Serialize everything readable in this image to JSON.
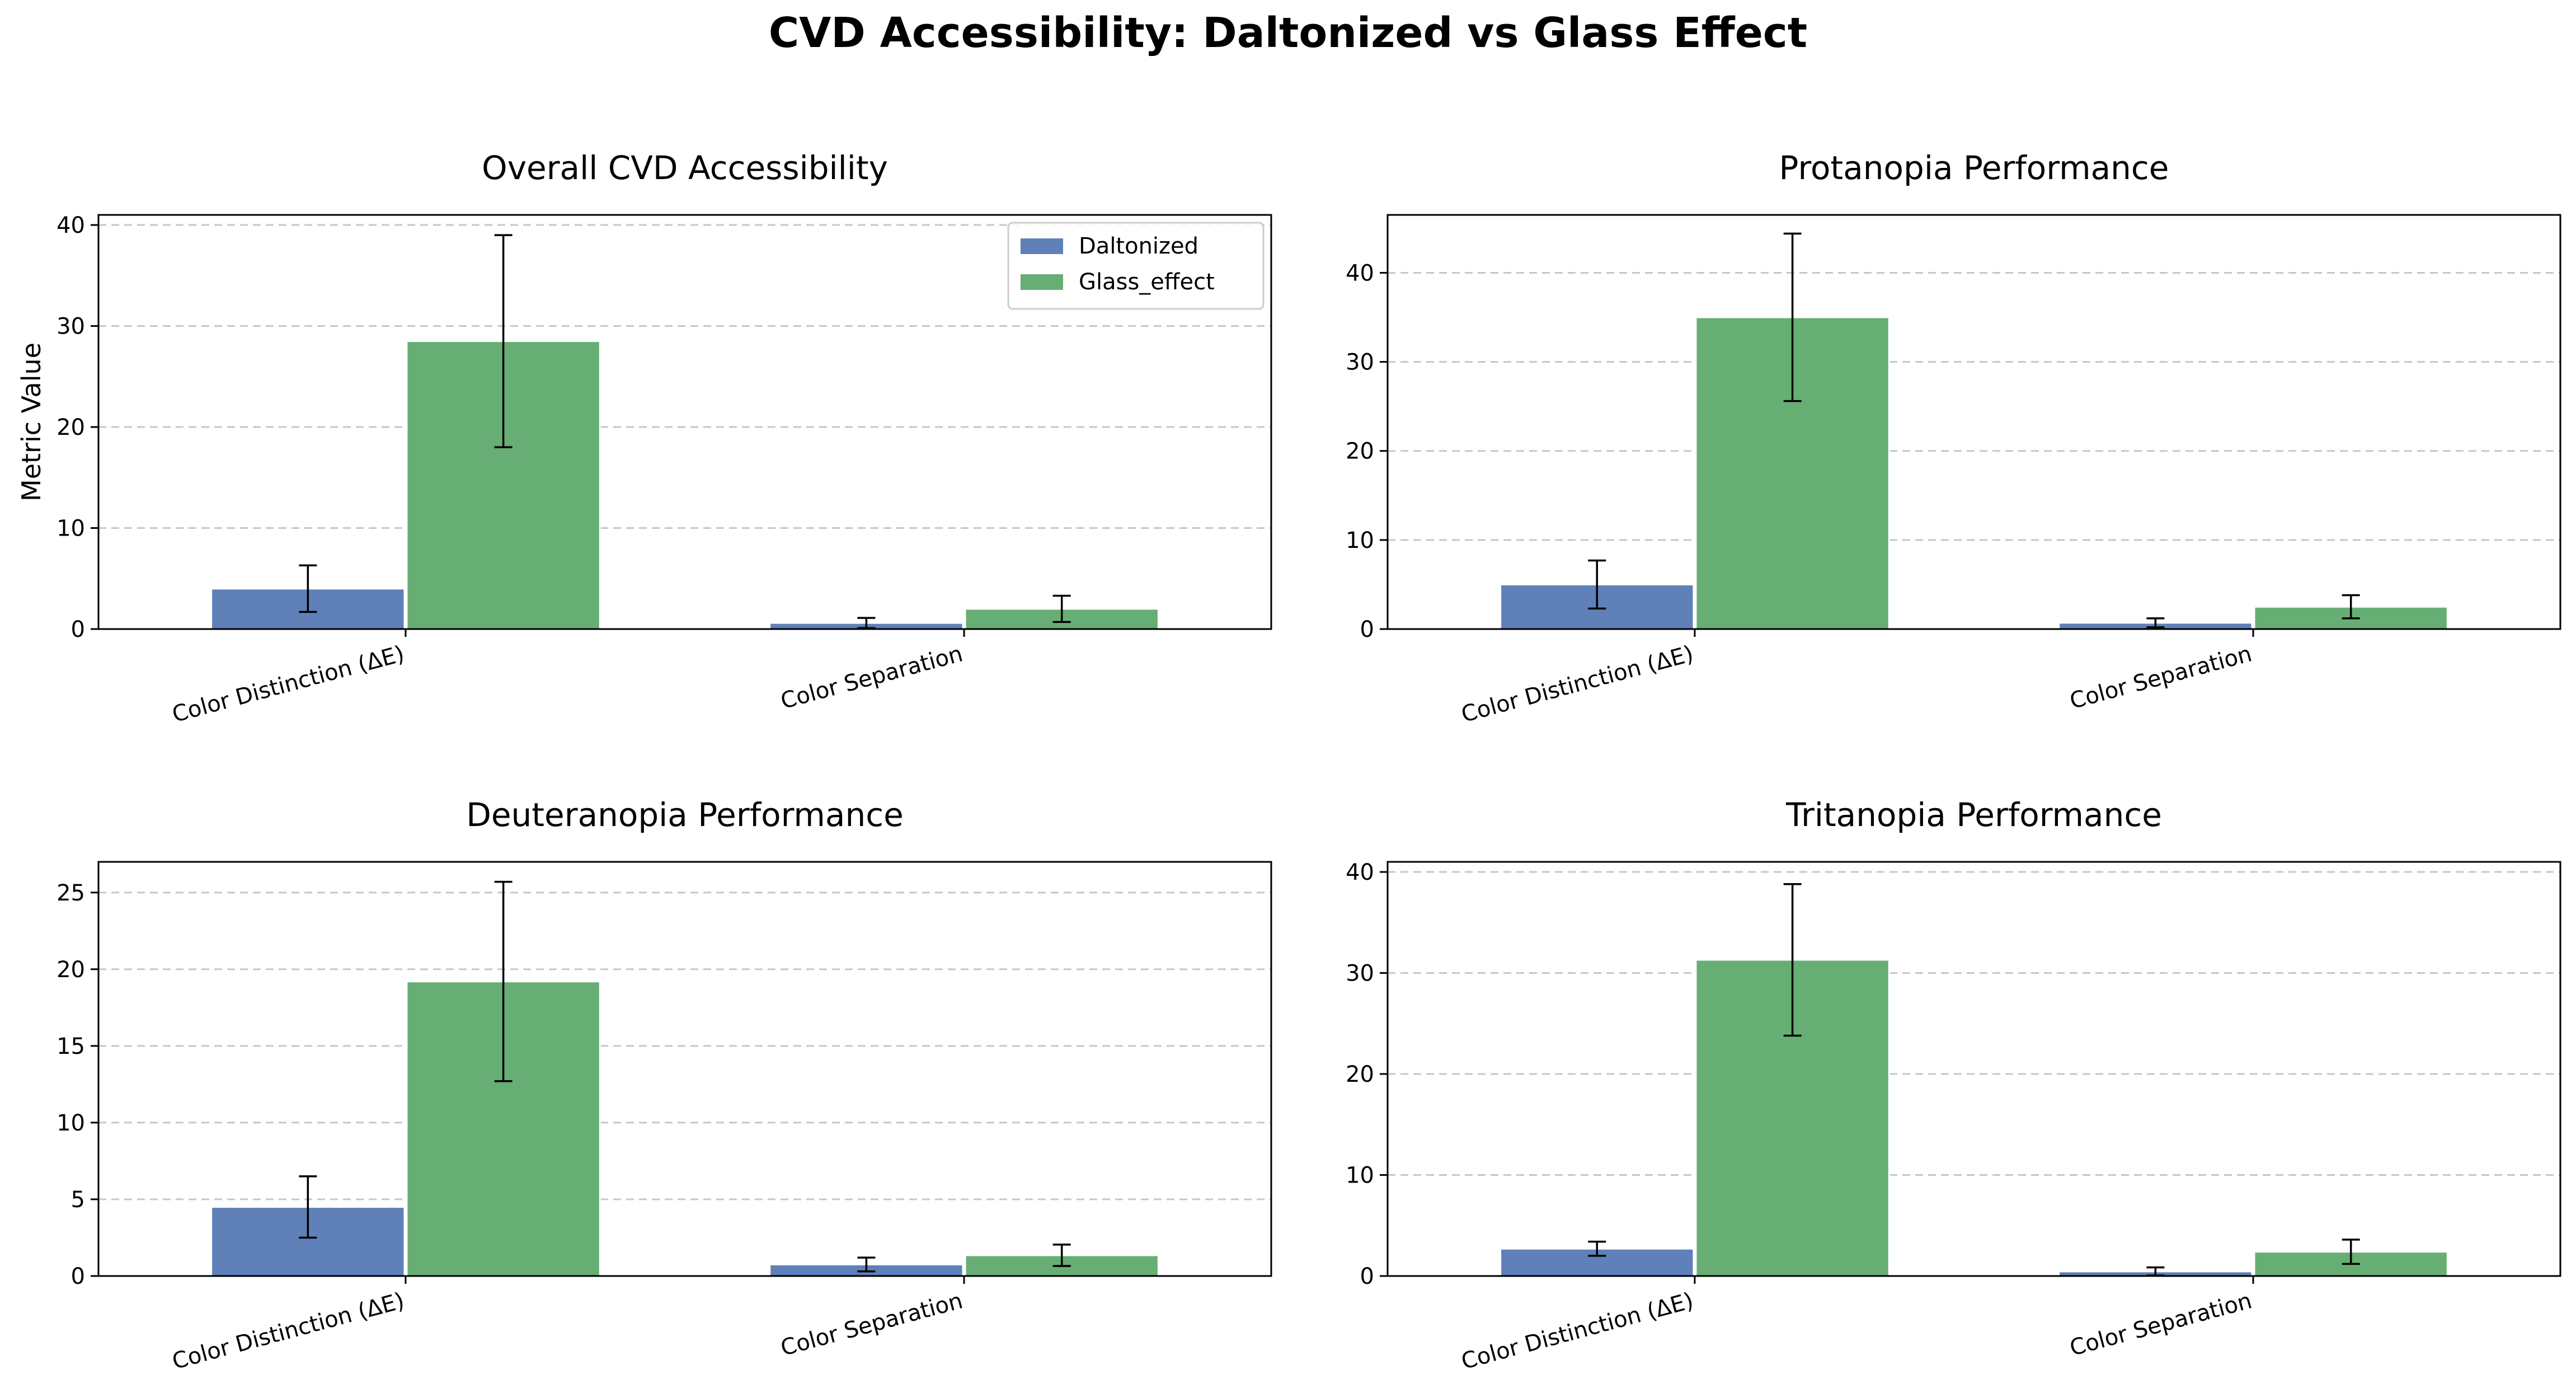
{
  "figure": {
    "title": "CVD Accessibility: Daltonized vs Glass Effect",
    "legend": {
      "placement": "upper-right",
      "entries": [
        {
          "name": "Daltonized",
          "color": "#5f80b8"
        },
        {
          "name": "Glass_effect",
          "color": "#67ae74"
        }
      ]
    }
  },
  "chart_data": [
    {
      "type": "bar",
      "title": "Overall CVD Accessibility",
      "ylabel": "Metric Value",
      "categories": [
        "Color Distinction (ΔE)",
        "Color Separation"
      ],
      "ylim": [
        0,
        41
      ],
      "yticks": [
        0,
        10,
        20,
        30,
        40
      ],
      "grid": "y",
      "legend": true,
      "series": [
        {
          "name": "Daltonized",
          "color": "#5f80b8",
          "values": [
            4.0,
            0.6
          ],
          "errors": [
            2.3,
            0.5
          ]
        },
        {
          "name": "Glass_effect",
          "color": "#67ae74",
          "values": [
            28.5,
            2.0
          ],
          "errors": [
            10.5,
            1.3
          ]
        }
      ]
    },
    {
      "type": "bar",
      "title": "Protanopia Performance",
      "ylabel": "",
      "categories": [
        "Color Distinction (ΔE)",
        "Color Separation"
      ],
      "ylim": [
        0,
        46.5
      ],
      "yticks": [
        0,
        10,
        20,
        30,
        40
      ],
      "grid": "y",
      "legend": false,
      "series": [
        {
          "name": "Daltonized",
          "color": "#5f80b8",
          "values": [
            5.0,
            0.7
          ],
          "errors": [
            2.7,
            0.5
          ]
        },
        {
          "name": "Glass_effect",
          "color": "#67ae74",
          "values": [
            35.0,
            2.5
          ],
          "errors": [
            9.4,
            1.3
          ]
        }
      ]
    },
    {
      "type": "bar",
      "title": "Deuteranopia Performance",
      "ylabel": "",
      "categories": [
        "Color Distinction (ΔE)",
        "Color Separation"
      ],
      "ylim": [
        0,
        27
      ],
      "yticks": [
        0,
        5,
        10,
        15,
        20,
        25
      ],
      "grid": "y",
      "legend": false,
      "series": [
        {
          "name": "Daltonized",
          "color": "#5f80b8",
          "values": [
            4.5,
            0.75
          ],
          "errors": [
            2.0,
            0.45
          ]
        },
        {
          "name": "Glass_effect",
          "color": "#67ae74",
          "values": [
            19.2,
            1.35
          ],
          "errors": [
            6.5,
            0.7
          ]
        }
      ]
    },
    {
      "type": "bar",
      "title": "Tritanopia Performance",
      "ylabel": "",
      "categories": [
        "Color Distinction (ΔE)",
        "Color Separation"
      ],
      "ylim": [
        0,
        41
      ],
      "yticks": [
        0,
        10,
        20,
        30,
        40
      ],
      "grid": "y",
      "legend": false,
      "series": [
        {
          "name": "Daltonized",
          "color": "#5f80b8",
          "values": [
            2.7,
            0.45
          ],
          "errors": [
            0.7,
            0.4
          ]
        },
        {
          "name": "Glass_effect",
          "color": "#67ae74",
          "values": [
            31.3,
            2.4
          ],
          "errors": [
            7.5,
            1.2
          ]
        }
      ]
    }
  ]
}
